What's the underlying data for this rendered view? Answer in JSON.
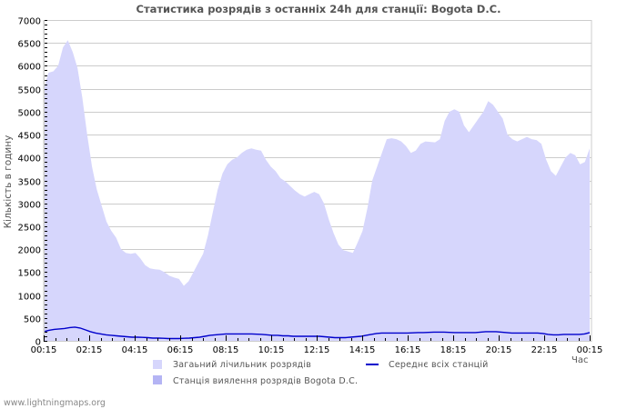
{
  "title": "Статистика розрядів з останніх 24h для станції: Bogota D.C.",
  "footer": "www.lightningmaps.org",
  "colors": {
    "total_fill": "#d6d6fc",
    "station_fill": "#b4b4f4",
    "average_line": "#0000cc",
    "grid": "#cccccc"
  },
  "legend": {
    "total": "Загаьний лічильник розрядів",
    "station": "Станція виялення розрядів Bogota D.C.",
    "average": "Середнє всіх станцій"
  },
  "chart_data": {
    "type": "area",
    "title": "Статистика розрядів з останніх 24h для станції: Bogota D.C.",
    "xlabel": "Час",
    "ylabel": "Кількість в годину",
    "ylim": [
      0,
      7000
    ],
    "yticks": [
      0,
      500,
      1000,
      1500,
      2000,
      2500,
      3000,
      3500,
      4000,
      4500,
      5000,
      5500,
      6000,
      6500,
      7000
    ],
    "xticks": [
      "00:15",
      "02:15",
      "04:15",
      "06:15",
      "08:15",
      "10:15",
      "12:15",
      "14:15",
      "16:15",
      "18:15",
      "20:15",
      "22:15",
      "00:15"
    ],
    "grid": true,
    "legend_position": "bottom",
    "x_step_minutes": 15,
    "series": [
      {
        "name": "Загаьний лічильник розрядів",
        "values": [
          5500,
          5850,
          5880,
          6000,
          6400,
          6560,
          6300,
          5950,
          5300,
          4500,
          3800,
          3300,
          2950,
          2600,
          2400,
          2250,
          2000,
          1920,
          1900,
          1920,
          1800,
          1650,
          1580,
          1560,
          1550,
          1500,
          1420,
          1380,
          1350,
          1200,
          1300,
          1500,
          1700,
          1900,
          2300,
          2800,
          3300,
          3650,
          3850,
          3950,
          4000,
          4100,
          4170,
          4200,
          4170,
          4150,
          3950,
          3800,
          3700,
          3550,
          3480,
          3380,
          3280,
          3200,
          3150,
          3200,
          3250,
          3200,
          3000,
          2650,
          2350,
          2100,
          1980,
          1950,
          1920,
          2150,
          2400,
          2900,
          3500,
          3800,
          4100,
          4400,
          4420,
          4400,
          4350,
          4250,
          4100,
          4150,
          4300,
          4350,
          4340,
          4330,
          4400,
          4800,
          5000,
          5050,
          5000,
          4700,
          4550,
          4700,
          4850,
          5000,
          5230,
          5150,
          5000,
          4850,
          4500,
          4400,
          4350,
          4400,
          4450,
          4400,
          4380,
          4300,
          3950,
          3700,
          3600,
          3800,
          4000,
          4100,
          4050,
          3850,
          3900,
          4200
        ],
        "note": "values approximate, read from area shape"
      },
      {
        "name": "Середнє всіх станцій",
        "values": [
          200,
          230,
          250,
          260,
          270,
          290,
          300,
          280,
          240,
          200,
          170,
          150,
          130,
          120,
          110,
          100,
          90,
          80,
          80,
          75,
          70,
          60,
          60,
          55,
          50,
          50,
          50,
          55,
          60,
          70,
          80,
          100,
          120,
          130,
          140,
          150,
          150,
          150,
          150,
          150,
          150,
          145,
          140,
          130,
          120,
          120,
          110,
          110,
          100,
          100,
          100,
          100,
          100,
          100,
          90,
          80,
          70,
          70,
          70,
          80,
          90,
          100,
          120,
          140,
          160,
          170,
          170,
          170,
          170,
          170,
          170,
          175,
          180,
          180,
          185,
          190,
          190,
          190,
          185,
          180,
          180,
          180,
          180,
          180,
          190,
          200,
          200,
          200,
          190,
          180,
          170,
          170,
          170,
          170,
          170,
          170,
          160,
          140,
          130,
          130,
          140,
          140,
          140,
          140,
          150,
          180
        ],
        "note": "values approximate"
      },
      {
        "name": "Станція виялення розрядів Bogota D.C.",
        "values": [],
        "note": "legend entry only; not visibly distinct from total"
      }
    ]
  }
}
